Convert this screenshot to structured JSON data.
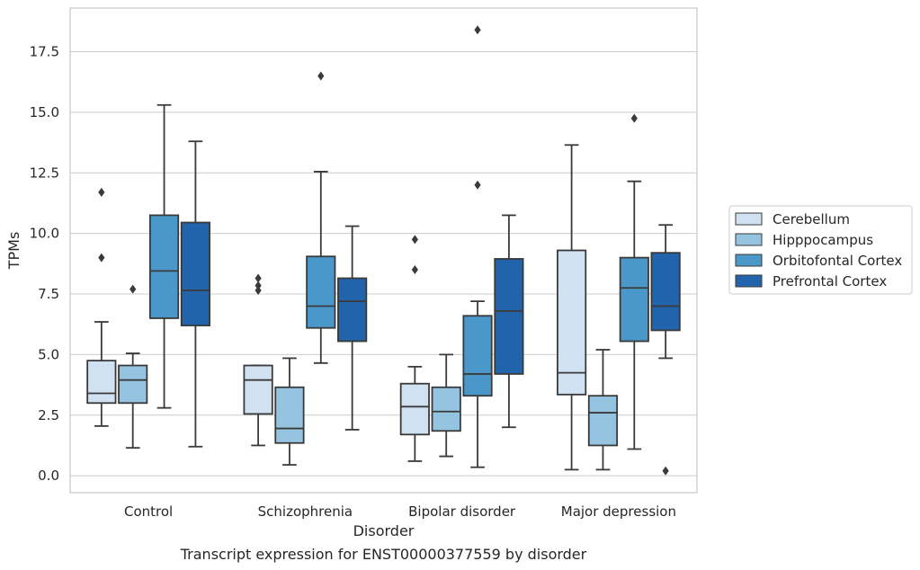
{
  "chart_data": {
    "type": "box",
    "caption": "Transcript expression for ENST00000377559 by disorder",
    "xlabel": "Disorder",
    "ylabel": "TPMs",
    "ylim": [
      -0.7,
      19.3
    ],
    "yticks": [
      0.0,
      2.5,
      5.0,
      7.5,
      10.0,
      12.5,
      15.0,
      17.5
    ],
    "ytick_labels": [
      "0.0",
      "2.5",
      "5.0",
      "7.5",
      "10.0",
      "12.5",
      "15.0",
      "17.5"
    ],
    "grid": "horizontal",
    "legend_position": "right",
    "categories": [
      "Control",
      "Schizophrenia",
      "Bipolar disorder",
      "Major depression"
    ],
    "series": [
      {
        "name": "Cerebellum",
        "color": "#d0e1f2",
        "boxes": [
          {
            "whisker_low": 2.05,
            "q1": 3.0,
            "median": 3.4,
            "q3": 4.75,
            "whisker_high": 6.35,
            "outliers": [
              9.0,
              11.7
            ]
          },
          {
            "whisker_low": 1.25,
            "q1": 2.55,
            "median": 3.95,
            "q3": 4.55,
            "whisker_high": 4.55,
            "outliers": [
              7.65,
              7.85,
              8.15
            ]
          },
          {
            "whisker_low": 0.6,
            "q1": 1.7,
            "median": 2.85,
            "q3": 3.8,
            "whisker_high": 4.5,
            "outliers": [
              8.5,
              9.75
            ]
          },
          {
            "whisker_low": 0.25,
            "q1": 3.35,
            "median": 4.25,
            "q3": 9.3,
            "whisker_high": 13.65,
            "outliers": []
          }
        ]
      },
      {
        "name": "Hipppocampus",
        "color": "#94c4df",
        "boxes": [
          {
            "whisker_low": 1.15,
            "q1": 3.0,
            "median": 3.95,
            "q3": 4.55,
            "whisker_high": 5.05,
            "outliers": [
              7.7
            ]
          },
          {
            "whisker_low": 0.45,
            "q1": 1.35,
            "median": 1.95,
            "q3": 3.65,
            "whisker_high": 4.85,
            "outliers": []
          },
          {
            "whisker_low": 0.8,
            "q1": 1.85,
            "median": 2.65,
            "q3": 3.65,
            "whisker_high": 5.0,
            "outliers": []
          },
          {
            "whisker_low": 0.25,
            "q1": 1.25,
            "median": 2.6,
            "q3": 3.3,
            "whisker_high": 5.2,
            "outliers": []
          }
        ]
      },
      {
        "name": "Orbitofontal Cortex",
        "color": "#4a98c9",
        "boxes": [
          {
            "whisker_low": 2.8,
            "q1": 6.5,
            "median": 8.45,
            "q3": 10.75,
            "whisker_high": 15.3,
            "outliers": []
          },
          {
            "whisker_low": 4.65,
            "q1": 6.1,
            "median": 7.0,
            "q3": 9.05,
            "whisker_high": 12.55,
            "outliers": [
              16.5
            ]
          },
          {
            "whisker_low": 0.35,
            "q1": 3.3,
            "median": 4.2,
            "q3": 6.6,
            "whisker_high": 7.2,
            "outliers": [
              12.0,
              18.4
            ]
          },
          {
            "whisker_low": 1.1,
            "q1": 5.55,
            "median": 7.75,
            "q3": 9.0,
            "whisker_high": 12.15,
            "outliers": [
              14.75
            ]
          }
        ]
      },
      {
        "name": "Prefrontal Cortex",
        "color": "#2164ab",
        "boxes": [
          {
            "whisker_low": 1.2,
            "q1": 6.2,
            "median": 7.65,
            "q3": 10.45,
            "whisker_high": 13.8,
            "outliers": []
          },
          {
            "whisker_low": 1.9,
            "q1": 5.55,
            "median": 7.2,
            "q3": 8.15,
            "whisker_high": 10.3,
            "outliers": []
          },
          {
            "whisker_low": 2.0,
            "q1": 4.2,
            "median": 6.8,
            "q3": 8.95,
            "whisker_high": 10.75,
            "outliers": []
          },
          {
            "whisker_low": 4.85,
            "q1": 6.0,
            "median": 7.0,
            "q3": 9.2,
            "whisker_high": 10.35,
            "outliers": [
              0.2
            ]
          }
        ]
      }
    ]
  }
}
